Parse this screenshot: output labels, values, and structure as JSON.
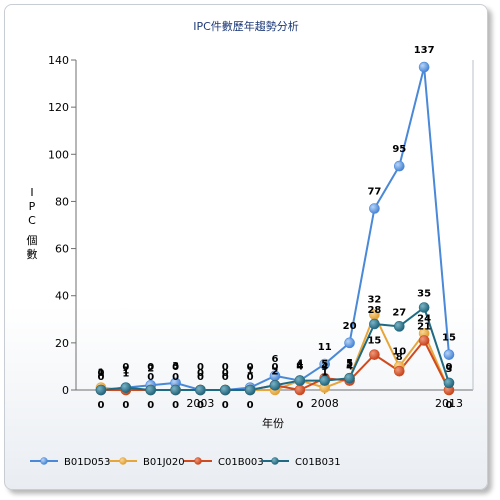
{
  "chart_data": {
    "type": "line",
    "title": "IPC件數歷年趨勢分析",
    "xlabel": "年份",
    "ylabel": "IPC 個數",
    "ylim": [
      0,
      140
    ],
    "yticks": [
      "0",
      "20",
      "40",
      "60",
      "80",
      "100",
      "120",
      "140"
    ],
    "x": [
      1999,
      2000,
      2001,
      2002,
      2003,
      2004,
      2005,
      2006,
      2007,
      2008,
      2009,
      2010,
      2011,
      2012,
      2013
    ],
    "xtick_labels": [
      "2003",
      "2008",
      "2013"
    ],
    "grid": false,
    "legend_position": "bottom",
    "series": [
      {
        "name": "B01D053",
        "color": "#4a88d8",
        "values": [
          0,
          1,
          2,
          3,
          0,
          0,
          1,
          6,
          4,
          11,
          20,
          77,
          95,
          137,
          15
        ]
      },
      {
        "name": "B01J020",
        "color": "#e6a63a",
        "values": [
          1,
          0,
          0,
          0,
          0,
          0,
          0,
          0,
          4,
          1,
          5,
          32,
          10,
          24,
          0
        ]
      },
      {
        "name": "C01B003",
        "color": "#cf4a1e",
        "values": [
          0,
          0,
          0,
          0,
          0,
          0,
          0,
          2,
          0,
          5,
          4,
          15,
          8,
          21,
          0
        ]
      },
      {
        "name": "C01B031",
        "color": "#1f6a82",
        "values": [
          0,
          1,
          0,
          0,
          0,
          0,
          0,
          2,
          4,
          4,
          5,
          28,
          27,
          35,
          3
        ]
      }
    ]
  }
}
